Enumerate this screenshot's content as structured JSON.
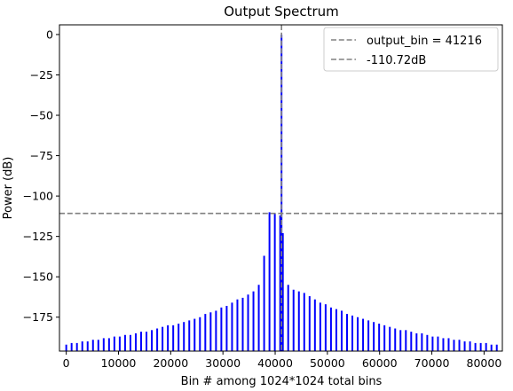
{
  "chart_data": {
    "type": "bar",
    "title": "Output Spectrum",
    "xlabel": "Bin # among 1024*1024 total bins",
    "ylabel": "Power (dB)",
    "xlim": [
      -1300,
      83500
    ],
    "ylim": [
      -196,
      6
    ],
    "xticks": [
      0,
      10000,
      20000,
      30000,
      40000,
      50000,
      60000,
      70000,
      80000
    ],
    "xtick_labels": [
      "0",
      "10000",
      "20000",
      "30000",
      "40000",
      "50000",
      "60000",
      "70000",
      "80000"
    ],
    "yticks": [
      0,
      -25,
      -50,
      -75,
      -100,
      -125,
      -150,
      -175
    ],
    "ytick_labels": [
      "0",
      "−25",
      "−50",
      "−75",
      "−100",
      "−125",
      "−150",
      "−175"
    ],
    "grid": false,
    "legend_position": "top-right",
    "baseline": -196,
    "bar_color": "#0000ff",
    "reference_line_color": "#808080",
    "series_x": [
      0,
      1024,
      2048,
      3072,
      4096,
      5120,
      6144,
      7168,
      8192,
      9216,
      10240,
      11264,
      12288,
      13312,
      14336,
      15360,
      16384,
      17408,
      18432,
      19456,
      20480,
      21504,
      22528,
      23552,
      24576,
      25600,
      26624,
      27648,
      28672,
      29696,
      30720,
      31744,
      32768,
      33792,
      34816,
      35840,
      36864,
      37888,
      38912,
      39936,
      40960,
      41216,
      41472,
      42496,
      43520,
      44544,
      45568,
      46592,
      47616,
      48640,
      49664,
      50688,
      51712,
      52736,
      53760,
      54784,
      55808,
      56832,
      57856,
      58880,
      59904,
      60928,
      61952,
      62976,
      64000,
      65024,
      66048,
      67072,
      68096,
      69120,
      70144,
      71168,
      72192,
      73216,
      74240,
      75264,
      76288,
      77312,
      78336,
      79360,
      80384,
      81408,
      82432
    ],
    "series_y": [
      -192,
      -191,
      -191,
      -190,
      -190,
      -189,
      -189,
      -188,
      -188,
      -187,
      -187,
      -186,
      -186,
      -185,
      -184,
      -184,
      -183,
      -182,
      -181,
      -180,
      -180,
      -179,
      -178,
      -177,
      -176,
      -175,
      -173,
      -172,
      -171,
      -169,
      -168,
      -166,
      -164,
      -163,
      -161,
      -159,
      -155,
      -137,
      -110,
      -111,
      -112,
      -0.1,
      -123,
      -155,
      -158,
      -159,
      -160,
      -162,
      -164,
      -166,
      -167,
      -169,
      -170,
      -171,
      -173,
      -174,
      -175,
      -176,
      -177,
      -178,
      -179,
      -180,
      -181,
      -182,
      -183,
      -183,
      -184,
      -185,
      -185,
      -186,
      -187,
      -187,
      -188,
      -188,
      -189,
      -189,
      -190,
      -190,
      -191,
      -191,
      -191,
      -192,
      -192
    ],
    "reference_lines": [
      {
        "orientation": "vertical",
        "value": 41216,
        "label": "output_bin = 41216"
      },
      {
        "orientation": "horizontal",
        "value": -110.72,
        "label": "-110.72dB"
      }
    ]
  }
}
